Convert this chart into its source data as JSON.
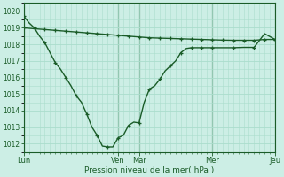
{
  "background_color": "#cceee5",
  "grid_color": "#aaddcc",
  "line_color": "#1a5c28",
  "xlabel": "Pression niveau de la mer( hPa )",
  "ylim": [
    1011.5,
    1020.3
  ],
  "yticks": [
    1012,
    1013,
    1014,
    1015,
    1016,
    1017,
    1018,
    1019,
    1020
  ],
  "day_positions": [
    0,
    9,
    11,
    18,
    24
  ],
  "day_labels": [
    "Lun",
    "Ven",
    "Mar",
    "Mer",
    "Jeu"
  ],
  "line1_x": [
    0,
    1,
    2,
    3,
    4,
    5,
    6,
    7,
    8,
    9,
    10,
    11,
    12,
    13,
    14,
    15,
    16,
    17,
    18,
    19,
    20,
    21,
    22,
    23,
    24
  ],
  "line1_y": [
    1019.0,
    1018.95,
    1018.9,
    1018.85,
    1018.8,
    1018.75,
    1018.7,
    1018.65,
    1018.6,
    1018.55,
    1018.5,
    1018.45,
    1018.4,
    1018.38,
    1018.36,
    1018.34,
    1018.32,
    1018.3,
    1018.28,
    1018.26,
    1018.25,
    1018.25,
    1018.25,
    1018.3,
    1018.3
  ],
  "line2_x": [
    0,
    0.5,
    1,
    1.5,
    2,
    2.5,
    3,
    3.5,
    4,
    4.5,
    5,
    5.5,
    6,
    6.5,
    7,
    7.5,
    8,
    8.5,
    9,
    9.5,
    10,
    10.5,
    11,
    11.5,
    12,
    12.5,
    13,
    13.5,
    14,
    14.5,
    15,
    15.5,
    16,
    16.5,
    17,
    17.5,
    18,
    19,
    20,
    21,
    22,
    23,
    24
  ],
  "line2_y": [
    1019.7,
    1019.3,
    1019.0,
    1018.5,
    1018.1,
    1017.5,
    1016.9,
    1016.5,
    1016.0,
    1015.5,
    1014.9,
    1014.5,
    1013.8,
    1013.0,
    1012.5,
    1011.85,
    1011.8,
    1011.8,
    1012.35,
    1012.5,
    1013.1,
    1013.3,
    1013.25,
    1014.5,
    1015.3,
    1015.5,
    1015.9,
    1016.4,
    1016.7,
    1017.0,
    1017.5,
    1017.75,
    1017.8,
    1017.8,
    1017.8,
    1017.8,
    1017.8,
    1017.8,
    1017.8,
    1017.82,
    1017.82,
    1018.65,
    1018.3
  ],
  "figsize": [
    3.2,
    2.0
  ],
  "dpi": 100
}
